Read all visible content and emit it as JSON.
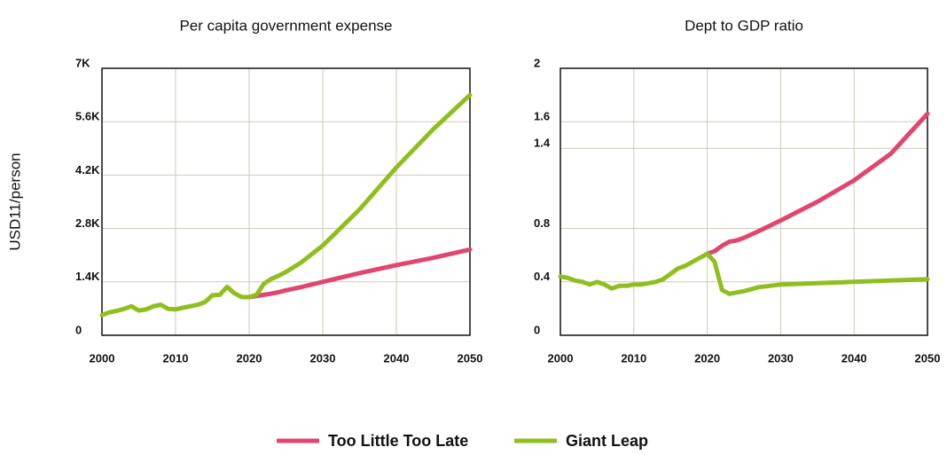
{
  "chart_data": [
    {
      "type": "line",
      "title": "Per capita government expense",
      "ylabel": "USD11/person",
      "x": [
        2000,
        2001,
        2002,
        2003,
        2004,
        2005,
        2006,
        2007,
        2008,
        2009,
        2010,
        2011,
        2012,
        2013,
        2014,
        2015,
        2016,
        2017,
        2018,
        2019,
        2020,
        2021,
        2022,
        2023,
        2024,
        2025,
        2027,
        2030,
        2035,
        2040,
        2045,
        2050
      ],
      "series": [
        {
          "name": "Too Little Too Late",
          "color": "#e0466e",
          "values": [
            null,
            null,
            null,
            null,
            null,
            null,
            null,
            null,
            null,
            null,
            null,
            null,
            null,
            null,
            null,
            null,
            null,
            null,
            null,
            null,
            1000,
            1030,
            1060,
            1090,
            1130,
            1180,
            1260,
            1400,
            1630,
            1840,
            2030,
            2250
          ]
        },
        {
          "name": "Giant Leap",
          "color": "#8fbf1f",
          "values": [
            530,
            600,
            640,
            690,
            760,
            650,
            680,
            760,
            800,
            690,
            680,
            720,
            760,
            800,
            870,
            1050,
            1060,
            1270,
            1100,
            1000,
            1000,
            1060,
            1350,
            1480,
            1560,
            1660,
            1900,
            2350,
            3300,
            4400,
            5400,
            6300
          ]
        }
      ],
      "xlim": [
        2000,
        2050
      ],
      "xticks": [
        2000,
        2010,
        2020,
        2030,
        2040,
        2050
      ],
      "ylim": [
        0,
        7000
      ],
      "yticks": [
        0,
        {
          "value": 1400,
          "label": "1.4K"
        },
        {
          "value": 2800,
          "label": "2.8K"
        },
        {
          "value": 4200,
          "label": "4.2K"
        },
        {
          "value": 5600,
          "label": "5.6K"
        },
        {
          "value": 7000,
          "label": "7K"
        }
      ],
      "grid": true
    },
    {
      "type": "line",
      "title": "Dept to GDP ratio",
      "x": [
        2000,
        2001,
        2002,
        2003,
        2004,
        2005,
        2006,
        2007,
        2008,
        2009,
        2010,
        2011,
        2012,
        2013,
        2014,
        2015,
        2016,
        2017,
        2018,
        2019,
        2020,
        2021,
        2022,
        2023,
        2024,
        2025,
        2027,
        2030,
        2035,
        2040,
        2045,
        2050
      ],
      "series": [
        {
          "color": "#e0466e",
          "values": [
            null,
            null,
            null,
            null,
            null,
            null,
            null,
            null,
            null,
            null,
            null,
            null,
            null,
            null,
            null,
            null,
            null,
            null,
            null,
            null,
            0.61,
            0.63,
            0.67,
            0.7,
            0.71,
            0.73,
            0.78,
            0.86,
            1.0,
            1.16,
            1.36,
            1.66
          ]
        },
        {
          "color": "#8fbf1f",
          "values": [
            0.44,
            0.43,
            0.41,
            0.4,
            0.38,
            0.4,
            0.38,
            0.35,
            0.37,
            0.37,
            0.38,
            0.38,
            0.39,
            0.4,
            0.42,
            0.46,
            0.5,
            0.52,
            0.55,
            0.58,
            0.61,
            0.55,
            0.34,
            0.31,
            0.32,
            0.33,
            0.36,
            0.38,
            0.39,
            0.4,
            0.41,
            0.42
          ]
        }
      ],
      "xlim": [
        2000,
        2050
      ],
      "xticks": [
        2000,
        2010,
        2020,
        2030,
        2040,
        2050
      ],
      "ylim": [
        0,
        2
      ],
      "yticks": [
        0,
        0.4,
        0.8,
        1.4,
        1.6,
        2
      ],
      "grid": true
    }
  ]
}
